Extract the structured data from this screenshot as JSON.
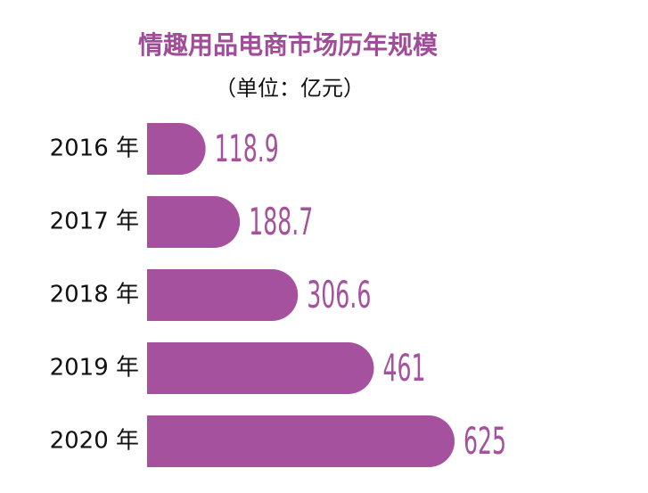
{
  "chart_data": {
    "type": "bar",
    "orientation": "horizontal",
    "title": "情趣用品电商市场历年规模",
    "subtitle": "（单位：亿元）",
    "categories": [
      "2016 年",
      "2017 年",
      "2018 年",
      "2019 年",
      "2020 年"
    ],
    "values": [
      118.9,
      188.7,
      306.6,
      461,
      625
    ],
    "color": "#a5519d"
  }
}
